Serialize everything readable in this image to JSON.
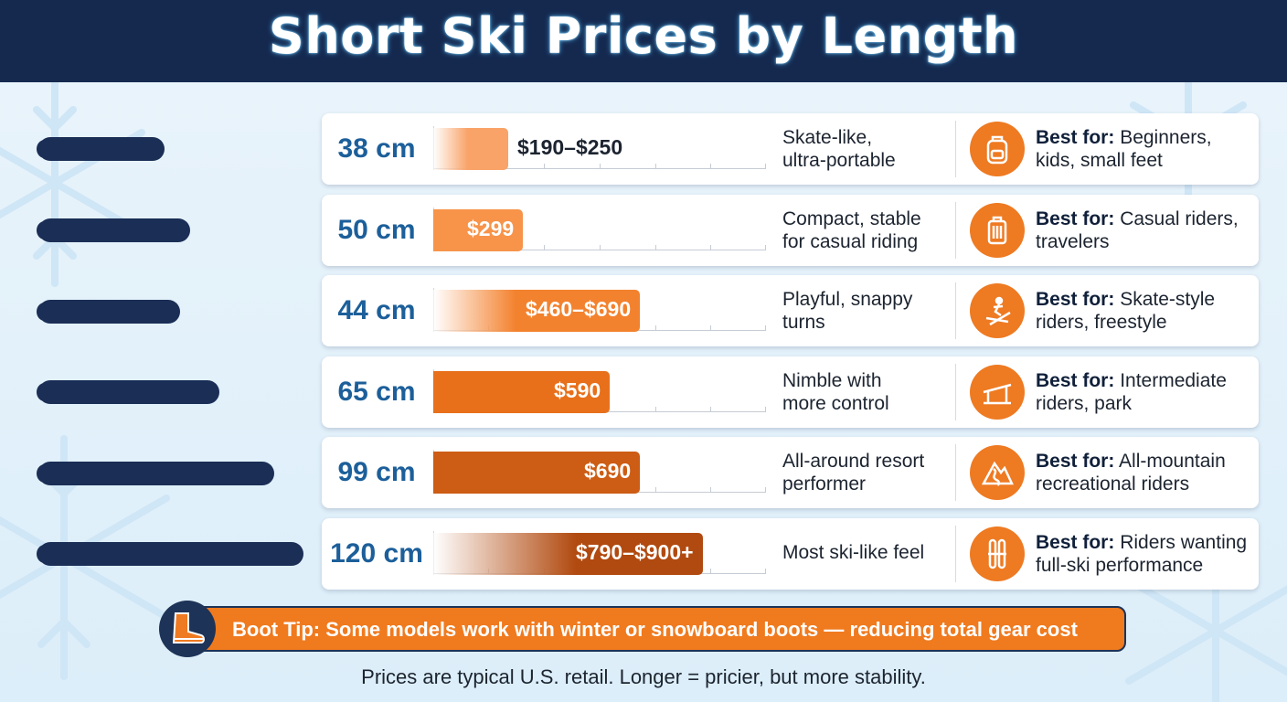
{
  "title": "Short Ski Prices by Length",
  "chart_data": {
    "type": "bar",
    "orientation": "horizontal",
    "xlim": [
      0,
      1000
    ],
    "grid": false,
    "rows": [
      {
        "length": "38 cm",
        "price_label": "$190–$250",
        "low": 190,
        "high": 250,
        "description": [
          "Skate-like,",
          "ultra-portable"
        ],
        "best_for": "Beginners, kids, small feet",
        "icon": "backpack-icon",
        "color": "#f9a368"
      },
      {
        "length": "50 cm",
        "price_label": "$299",
        "low": 299,
        "high": 299,
        "description": [
          "Compact, stable",
          "for casual riding"
        ],
        "best_for": "Casual riders, travelers",
        "icon": "suitcase-icon",
        "color": "#f7944a"
      },
      {
        "length": "44 cm",
        "price_label": "$460–$690",
        "low": 460,
        "high": 690,
        "description": [
          "Playful, snappy",
          "turns"
        ],
        "best_for": "Skate-style riders, freestyle",
        "icon": "freestyle-skier-icon",
        "color": "#f3822e"
      },
      {
        "length": "65 cm",
        "price_label": "$590",
        "low": 590,
        "high": 590,
        "description": [
          "Nimble with",
          "more control"
        ],
        "best_for": "Intermediate riders, park",
        "icon": "park-rail-icon",
        "color": "#e8701b"
      },
      {
        "length": "99 cm",
        "price_label": "$690",
        "low": 690,
        "high": 690,
        "description": [
          "All-around resort",
          "performer"
        ],
        "best_for": "All-mountain recreational riders",
        "icon": "mountain-icon",
        "color": "#cd5c14"
      },
      {
        "length": "120 cm",
        "price_label": "$790–$900+",
        "low": 790,
        "high": 900,
        "description": [
          "Most ski-like feel"
        ],
        "best_for": "Riders wanting full-ski performance",
        "icon": "skis-icon",
        "color": "#b14a10"
      }
    ]
  },
  "best_for_prefix": "Best for:",
  "tip": {
    "text": "Boot Tip: Some models work with winter or snowboard boots — reducing total gear cost",
    "icon": "boot-icon"
  },
  "footnote": "Prices are typical U.S. retail. Longer = pricier, but more stability.",
  "colors": {
    "header": "#15294f",
    "accent": "#ee7a22",
    "length_text": "#1c5f9a",
    "ski": "#1a2e56"
  }
}
